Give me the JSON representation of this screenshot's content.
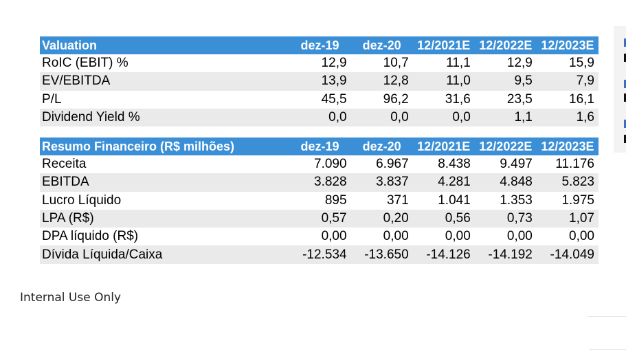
{
  "valuation": {
    "header": [
      "Valuation",
      "dez-19",
      "dez-20",
      "12/2021E",
      "12/2022E",
      "12/2023E"
    ],
    "rows": [
      {
        "label": "RoIC (EBIT) %",
        "values": [
          "12,9",
          "10,7",
          "11,1",
          "12,9",
          "15,9"
        ]
      },
      {
        "label": "EV/EBITDA",
        "values": [
          "13,9",
          "12,8",
          "11,0",
          "9,5",
          "7,9"
        ]
      },
      {
        "label": "P/L",
        "values": [
          "45,5",
          "96,2",
          "31,6",
          "23,5",
          "16,1"
        ]
      },
      {
        "label": "Dividend Yield %",
        "values": [
          "0,0",
          "0,0",
          "0,0",
          "1,1",
          "1,6"
        ]
      }
    ]
  },
  "resumo": {
    "header": [
      "Resumo Financeiro (R$ milhões)",
      "dez-19",
      "dez-20",
      "12/2021E",
      "12/2022E",
      "12/2023E"
    ],
    "rows": [
      {
        "label": "Receita",
        "values": [
          "7.090",
          "6.967",
          "8.438",
          "9.497",
          "11.176"
        ]
      },
      {
        "label": "EBITDA",
        "values": [
          "3.828",
          "3.837",
          "4.281",
          "4.848",
          "5.823"
        ]
      },
      {
        "label": "Lucro Líquido",
        "values": [
          "895",
          "371",
          "1.041",
          "1.353",
          "1.975"
        ]
      },
      {
        "label": "LPA (R$)",
        "values": [
          "0,57",
          "0,20",
          "0,56",
          "0,73",
          "1,07"
        ]
      },
      {
        "label": "DPA líquido (R$)",
        "values": [
          "0,00",
          "0,00",
          "0,00",
          "0,00",
          "0,00"
        ]
      },
      {
        "label": "Dívida Líquida/Caixa",
        "values": [
          "-12.534",
          "-13.650",
          "-14.126",
          "-14.192",
          "-14.049"
        ]
      }
    ]
  },
  "footer": {
    "text": "Internal Use Only"
  },
  "colors": {
    "header_bg": "#3b8fd6",
    "band_bg": "#eaeaea"
  }
}
